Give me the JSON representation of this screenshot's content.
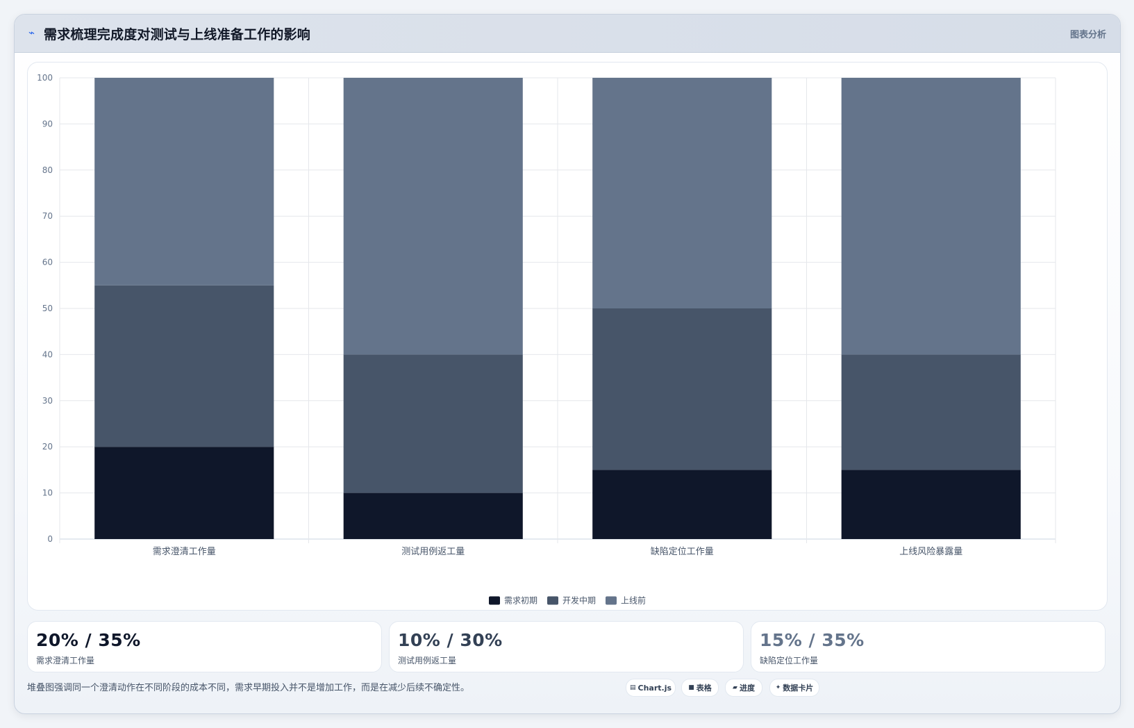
{
  "header": {
    "icon": "trend-icon",
    "title": "需求梳理完成度对测试与上线准备工作的影响",
    "tag": "图表分析"
  },
  "chart_data": {
    "type": "bar",
    "stacked": true,
    "categories": [
      "需求澄清工作量",
      "测试用例返工量",
      "缺陷定位工作量",
      "上线风险暴露量"
    ],
    "series": [
      {
        "name": "需求初期",
        "color": "#0f172a",
        "values": [
          20,
          10,
          15,
          15
        ]
      },
      {
        "name": "开发中期",
        "color": "#475569",
        "values": [
          35,
          30,
          35,
          25
        ]
      },
      {
        "name": "上线前",
        "color": "#64748b",
        "values": [
          45,
          60,
          50,
          60
        ]
      }
    ],
    "ylim": [
      0,
      100
    ],
    "yticks": [
      0,
      10,
      20,
      30,
      40,
      50,
      60,
      70,
      80,
      90,
      100
    ],
    "grid": true,
    "legend_position": "bottom"
  },
  "stats": [
    {
      "value": "20% / 35%",
      "label": "需求澄清工作量"
    },
    {
      "value": "10% / 30%",
      "label": "测试用例返工量"
    },
    {
      "value": "15% / 35%",
      "label": "缺陷定位工作量"
    }
  ],
  "footer": {
    "note": "堆叠图强调同一个澄清动作在不同阶段的成本不同，需求早期投入并不是增加工作，而是在减少后续不确定性。"
  },
  "tools": [
    {
      "icon": "chart-icon",
      "glyph": "▤",
      "label": "Chart.js"
    },
    {
      "icon": "table-icon",
      "glyph": "■",
      "label": "表格"
    },
    {
      "icon": "progress-icon",
      "glyph": "▰",
      "label": "进度"
    },
    {
      "icon": "sparkle-icon",
      "glyph": "✦",
      "label": "数据卡片"
    }
  ]
}
